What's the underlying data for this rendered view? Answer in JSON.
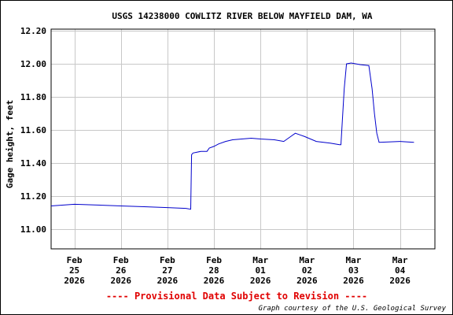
{
  "chart_data": {
    "type": "line",
    "title": "USGS 14238000 COWLITZ RIVER BELOW MAYFIELD DAM, WA",
    "ylabel": "Gage height, feet",
    "xlabel": "",
    "ylim": [
      10.88,
      12.21
    ],
    "yticks": [
      11.0,
      11.2,
      11.4,
      11.6,
      11.8,
      12.0,
      12.2
    ],
    "ytick_labels": [
      "11.00",
      "11.20",
      "11.40",
      "11.60",
      "11.80",
      "12.00",
      "12.20"
    ],
    "xlim": [
      -0.5,
      7.75
    ],
    "xticks": [
      0,
      1,
      2,
      3,
      4,
      5,
      6,
      7
    ],
    "xtick_labels": [
      [
        "Feb",
        "25",
        "2026"
      ],
      [
        "Feb",
        "26",
        "2026"
      ],
      [
        "Feb",
        "27",
        "2026"
      ],
      [
        "Feb",
        "28",
        "2026"
      ],
      [
        "Mar",
        "01",
        "2026"
      ],
      [
        "Mar",
        "02",
        "2026"
      ],
      [
        "Mar",
        "03",
        "2026"
      ],
      [
        "Mar",
        "04",
        "2026"
      ]
    ],
    "grid": true,
    "line_color": "#0000cc",
    "series": [
      {
        "x": [
          -0.5,
          0.0,
          0.5,
          1.0,
          1.5,
          2.0,
          2.4,
          2.5,
          2.52,
          2.55,
          2.72,
          2.85,
          2.9,
          3.0,
          3.1,
          3.25,
          3.4,
          3.6,
          3.8,
          4.0,
          4.3,
          4.5,
          4.65,
          4.75,
          4.85,
          4.95,
          5.2,
          5.5,
          5.7,
          5.73,
          5.8,
          5.85,
          5.95,
          6.15,
          6.33,
          6.4,
          6.45,
          6.5,
          6.55,
          7.0,
          7.3
        ],
        "y": [
          11.14,
          11.15,
          11.145,
          11.14,
          11.135,
          11.13,
          11.125,
          11.12,
          11.45,
          11.46,
          11.47,
          11.47,
          11.49,
          11.5,
          11.515,
          11.53,
          11.54,
          11.545,
          11.55,
          11.545,
          11.54,
          11.53,
          11.56,
          11.58,
          11.57,
          11.56,
          11.53,
          11.52,
          11.51,
          11.51,
          11.85,
          12.0,
          12.005,
          11.995,
          11.99,
          11.85,
          11.7,
          11.58,
          11.525,
          11.53,
          11.525
        ]
      }
    ]
  },
  "notice": "---- Provisional Data Subject to Revision ----",
  "credit": "Graph courtesy of the U.S. Geological Survey"
}
